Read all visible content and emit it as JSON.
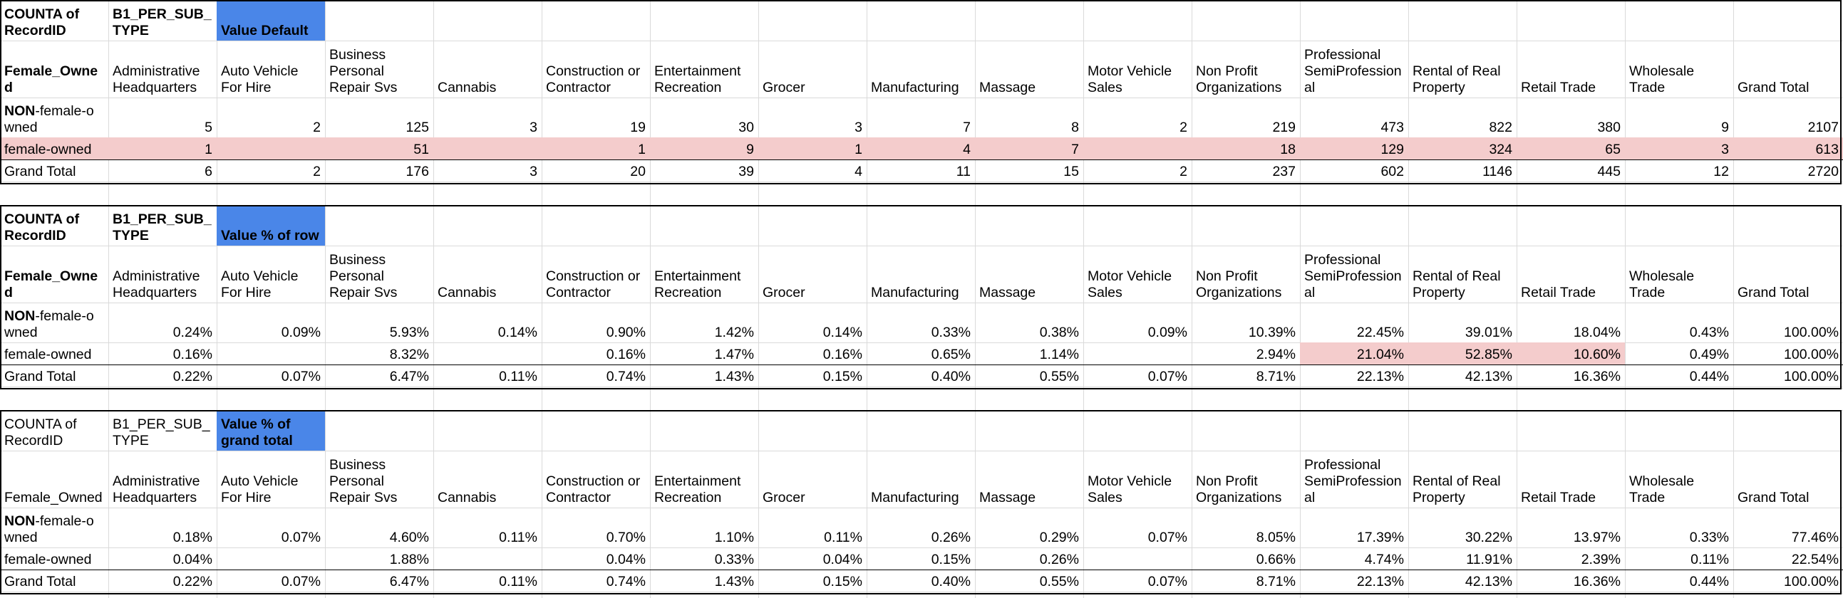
{
  "colors": {
    "value_type_header_bg": "#4a86e8",
    "highlight_row_bg": "#f4cccc",
    "gridline": "#dadada",
    "frame_border": "#000000"
  },
  "columns": [
    "Administrative\nHeadquarters",
    "Auto Vehicle\nFor Hire",
    "Business\nPersonal\nRepair Svs",
    "Cannabis",
    "Construction or\nContractor",
    "Entertainment\nRecreation",
    "Grocer",
    "Manufacturing",
    "Massage",
    "Motor Vehicle\nSales",
    "Non Profit\nOrganizations",
    "Professional\nSemiProfession\nal",
    "Rental of Real\nProperty",
    "Retail Trade",
    "Wholesale\nTrade",
    "Grand Total"
  ],
  "pivots": [
    {
      "corner_label": "COUNTA of\nRecordID",
      "column_field": "B1_PER_SUB_\nTYPE",
      "value_type": "Value Default",
      "row_field": "Female_Owne\nd",
      "rows": [
        {
          "label_bold": "NON",
          "label_rest": "-female-o\nwned",
          "values": [
            "5",
            "2",
            "125",
            "3",
            "19",
            "30",
            "3",
            "7",
            "8",
            "2",
            "219",
            "473",
            "822",
            "380",
            "9",
            "2107"
          ]
        },
        {
          "label_bold": "",
          "label_rest": "female-owned",
          "values": [
            "1",
            "",
            "51",
            "",
            "1",
            "9",
            "1",
            "4",
            "7",
            "",
            "18",
            "129",
            "324",
            "65",
            "3",
            "613"
          ]
        },
        {
          "label_bold": "",
          "label_rest": "Grand Total",
          "values": [
            "6",
            "2",
            "176",
            "3",
            "20",
            "39",
            "4",
            "11",
            "15",
            "2",
            "237",
            "602",
            "1146",
            "445",
            "12",
            "2720"
          ]
        }
      ]
    },
    {
      "corner_label": "COUNTA of\nRecordID",
      "column_field": "B1_PER_SUB_\nTYPE",
      "value_type": "Value % of row",
      "row_field": "Female_Owne\nd",
      "rows": [
        {
          "label_bold": "NON",
          "label_rest": "-female-o\nwned",
          "values": [
            "0.24%",
            "0.09%",
            "5.93%",
            "0.14%",
            "0.90%",
            "1.42%",
            "0.14%",
            "0.33%",
            "0.38%",
            "0.09%",
            "10.39%",
            "22.45%",
            "39.01%",
            "18.04%",
            "0.43%",
            "100.00%"
          ]
        },
        {
          "label_bold": "",
          "label_rest": "female-owned",
          "values": [
            "0.16%",
            "",
            "8.32%",
            "",
            "0.16%",
            "1.47%",
            "0.16%",
            "0.65%",
            "1.14%",
            "",
            "2.94%",
            "21.04%",
            "52.85%",
            "10.60%",
            "0.49%",
            "100.00%"
          ]
        },
        {
          "label_bold": "",
          "label_rest": "Grand Total",
          "values": [
            "0.22%",
            "0.07%",
            "6.47%",
            "0.11%",
            "0.74%",
            "1.43%",
            "0.15%",
            "0.40%",
            "0.55%",
            "0.07%",
            "8.71%",
            "22.13%",
            "42.13%",
            "16.36%",
            "0.44%",
            "100.00%"
          ]
        }
      ]
    },
    {
      "corner_label": "COUNTA of\nRecordID",
      "column_field": "B1_PER_SUB_\nTYPE",
      "value_type": "Value % of\ngrand total",
      "row_field": "Female_Owned",
      "rows": [
        {
          "label_bold": "NON",
          "label_rest": "-female-o\nwned",
          "values": [
            "0.18%",
            "0.07%",
            "4.60%",
            "0.11%",
            "0.70%",
            "1.10%",
            "0.11%",
            "0.26%",
            "0.29%",
            "0.07%",
            "8.05%",
            "17.39%",
            "30.22%",
            "13.97%",
            "0.33%",
            "77.46%"
          ]
        },
        {
          "label_bold": "",
          "label_rest": "female-owned",
          "values": [
            "0.04%",
            "",
            "1.88%",
            "",
            "0.04%",
            "0.33%",
            "0.04%",
            "0.15%",
            "0.26%",
            "",
            "0.66%",
            "4.74%",
            "11.91%",
            "2.39%",
            "0.11%",
            "22.54%"
          ]
        },
        {
          "label_bold": "",
          "label_rest": "Grand Total",
          "values": [
            "0.22%",
            "0.07%",
            "6.47%",
            "0.11%",
            "0.74%",
            "1.43%",
            "0.15%",
            "0.40%",
            "0.55%",
            "0.07%",
            "8.71%",
            "22.13%",
            "42.13%",
            "16.36%",
            "0.44%",
            "100.00%"
          ]
        }
      ]
    }
  ]
}
